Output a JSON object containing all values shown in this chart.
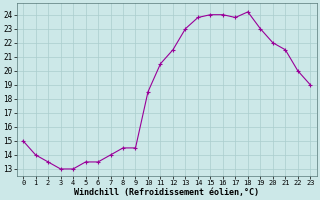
{
  "x": [
    0,
    1,
    2,
    3,
    4,
    5,
    6,
    7,
    8,
    9,
    10,
    11,
    12,
    13,
    14,
    15,
    16,
    17,
    18,
    19,
    20,
    21,
    22,
    23
  ],
  "y": [
    15,
    14,
    13.5,
    13,
    13,
    13.5,
    13.5,
    14,
    14.5,
    14.5,
    18.5,
    20.5,
    21.5,
    23,
    23.8,
    24,
    24,
    23.8,
    24.2,
    23,
    22,
    21.5,
    20,
    19
  ],
  "line_color": "#990099",
  "marker": "+",
  "bg_color": "#cce8e8",
  "grid_color": "#aacece",
  "xlabel": "Windchill (Refroidissement éolien,°C)",
  "xlabel_fontsize": 6.0,
  "ytick_labels": [
    "13",
    "14",
    "15",
    "16",
    "17",
    "18",
    "19",
    "20",
    "21",
    "22",
    "23",
    "24"
  ],
  "ytick_values": [
    13,
    14,
    15,
    16,
    17,
    18,
    19,
    20,
    21,
    22,
    23,
    24
  ],
  "xtick_labels": [
    "0",
    "1",
    "2",
    "3",
    "4",
    "5",
    "6",
    "7",
    "8",
    "9",
    "10",
    "11",
    "12",
    "13",
    "14",
    "15",
    "16",
    "17",
    "18",
    "19",
    "20",
    "21",
    "22",
    "23"
  ],
  "ylim": [
    12.5,
    24.8
  ],
  "xlim": [
    -0.5,
    23.5
  ]
}
